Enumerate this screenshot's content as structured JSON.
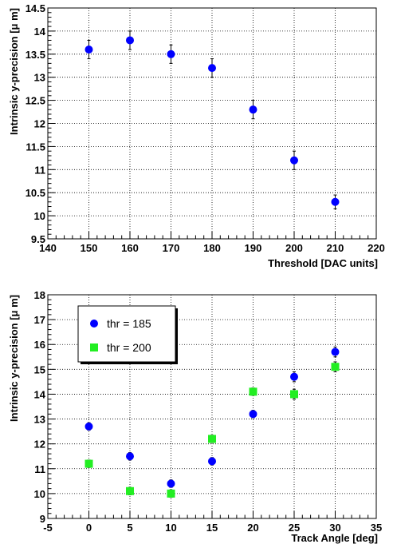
{
  "chart_data": [
    {
      "type": "scatter",
      "xlabel": "Threshold [DAC units]",
      "ylabel": "Intrinsic y-precision [μ m]",
      "xlim": [
        140,
        220
      ],
      "ylim": [
        9.5,
        14.5
      ],
      "xticks": [
        140,
        150,
        160,
        170,
        180,
        190,
        200,
        210,
        220
      ],
      "xtick_labels": [
        "140",
        "150",
        "160",
        "170",
        "180",
        "190",
        "200",
        "210",
        "220"
      ],
      "yticks": [
        9.5,
        10,
        10.5,
        11,
        11.5,
        12,
        12.5,
        13,
        13.5,
        14,
        14.5
      ],
      "ytick_labels": [
        "9.5",
        "10",
        "10.5",
        "11",
        "11.5",
        "12",
        "12.5",
        "13",
        "13.5",
        "14",
        "14.5"
      ],
      "grid": true,
      "series": [
        {
          "color": "#0000ff",
          "marker": "circle",
          "x": [
            150,
            160,
            170,
            180,
            190,
            200,
            210
          ],
          "y": [
            13.6,
            13.8,
            13.5,
            13.2,
            12.3,
            11.2,
            10.3
          ],
          "err": [
            0.2,
            0.2,
            0.2,
            0.2,
            0.2,
            0.2,
            0.15
          ]
        }
      ]
    },
    {
      "type": "scatter",
      "xlabel": "Track Angle [deg]",
      "ylabel": "Intrinsic y-precision [μ m]",
      "xlim": [
        -5,
        35
      ],
      "ylim": [
        9,
        18
      ],
      "xticks": [
        -5,
        0,
        5,
        10,
        15,
        20,
        25,
        30,
        35
      ],
      "xtick_labels": [
        "-5",
        "0",
        "5",
        "10",
        "15",
        "20",
        "25",
        "30",
        "35"
      ],
      "yticks": [
        9,
        10,
        11,
        12,
        13,
        14,
        15,
        16,
        17,
        18
      ],
      "ytick_labels": [
        "9",
        "10",
        "11",
        "12",
        "13",
        "14",
        "15",
        "16",
        "17",
        "18"
      ],
      "grid": true,
      "legend_position": "top-left",
      "series": [
        {
          "name": "thr = 185",
          "color": "#0000ff",
          "marker": "circle",
          "x": [
            0,
            5,
            10,
            15,
            20,
            25,
            30
          ],
          "y": [
            12.7,
            11.5,
            10.4,
            11.3,
            13.2,
            14.7,
            15.7
          ],
          "err": [
            0.15,
            0.15,
            0.15,
            0.15,
            0.15,
            0.2,
            0.2
          ]
        },
        {
          "name": "thr = 200",
          "color": "#22ee22",
          "marker": "square",
          "x": [
            0,
            5,
            10,
            15,
            20,
            25,
            30
          ],
          "y": [
            11.2,
            10.1,
            10.0,
            12.2,
            14.1,
            14.0,
            15.1
          ],
          "err": [
            0.15,
            0.15,
            0.15,
            0.15,
            0.15,
            0.2,
            0.2
          ]
        }
      ]
    }
  ]
}
